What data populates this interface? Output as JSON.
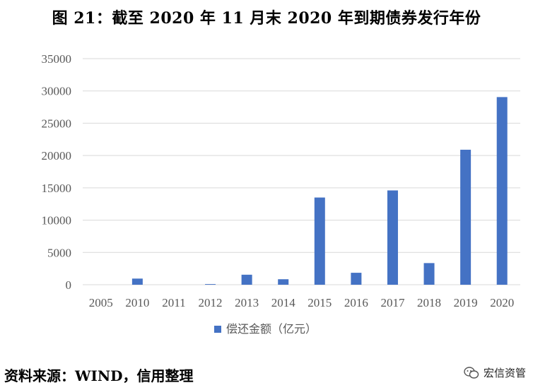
{
  "title": "图 21：截至 2020 年 11 月末 2020 年到期债券发行年份",
  "source": "资料来源：WIND，信用整理",
  "watermark": {
    "label": "宏信资管",
    "icon": "wechat-icon"
  },
  "colors": {
    "bar": "#4472C4",
    "grid": "#D9D9D9",
    "axis_text": "#595959"
  },
  "chart_data": {
    "type": "bar",
    "categories": [
      "2005",
      "2010",
      "2011",
      "2012",
      "2013",
      "2014",
      "2015",
      "2016",
      "2017",
      "2018",
      "2019",
      "2020"
    ],
    "series": [
      {
        "name": "偿还金额（亿元）",
        "values": [
          0,
          950,
          0,
          100,
          1550,
          850,
          13500,
          1850,
          14600,
          3350,
          20900,
          29050
        ]
      }
    ],
    "ylim": [
      0,
      35000
    ],
    "yticks": [
      "0",
      "5000",
      "10000",
      "15000",
      "20000",
      "25000",
      "30000",
      "35000"
    ],
    "grid": true,
    "legend": "bottom-center"
  }
}
